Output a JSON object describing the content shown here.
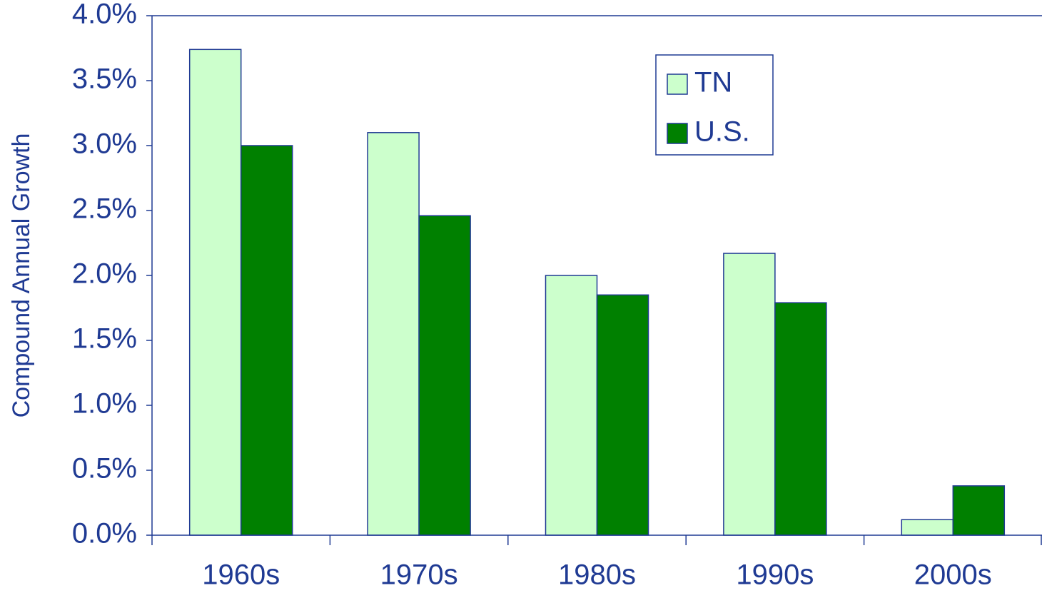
{
  "chart_data": {
    "type": "bar",
    "y_label": "Compound Annual Growth",
    "categories": [
      "1960s",
      "1970s",
      "1980s",
      "1990s",
      "2000s"
    ],
    "series": [
      {
        "name": "TN",
        "color": "#ccffcc",
        "values": [
          3.74,
          3.1,
          2.0,
          2.17,
          0.12
        ]
      },
      {
        "name": "U.S.",
        "color": "#008000",
        "values": [
          3.0,
          2.46,
          1.85,
          1.79,
          0.38
        ]
      }
    ],
    "ylim": [
      0,
      4.0
    ],
    "yticks": [
      {
        "value": 0,
        "label": "0.0%"
      },
      {
        "value": 0.5,
        "label": "0.5%"
      },
      {
        "value": 1.0,
        "label": "1.0%"
      },
      {
        "value": 1.5,
        "label": "1.5%"
      },
      {
        "value": 2.0,
        "label": "2.0%"
      },
      {
        "value": 2.5,
        "label": "2.5%"
      },
      {
        "value": 3.0,
        "label": "3.0%"
      },
      {
        "value": 3.5,
        "label": "3.5%"
      },
      {
        "value": 4.0,
        "label": "4.0%"
      }
    ],
    "legend": "upper right"
  }
}
